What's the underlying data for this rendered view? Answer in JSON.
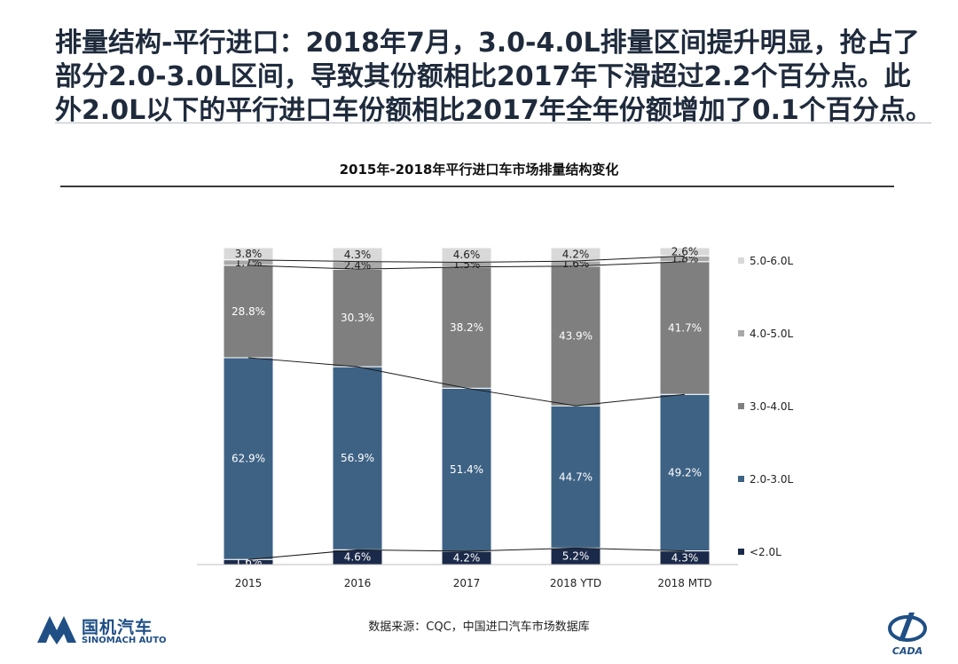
{
  "headline": "排量结构-平行进口：2018年7月，3.0-4.0L排量区间提升明显，抢占了部分2.0-3.0L区间，导致其份额相比2017年下滑超过2.2个百分点。此外2.0L以下的平行进口车份额相比2017年全年份额增加了0.1个百分点。",
  "source": "数据来源：CQC，中国进口汽车市场数据库",
  "logo": {
    "cn": "国机汽车",
    "en": "SINOMACH AUTO",
    "badge_text": "CADA"
  },
  "colors": {
    "lt2": "#1b2a4a",
    "2to3": "#3d6284",
    "3to4": "#7f7f7f",
    "4to5": "#a9a9a9",
    "5to6": "#d9d9d9"
  },
  "chart_data": {
    "type": "bar",
    "stacked": true,
    "percent": true,
    "title": "2015年-2018年平行进口车市场排量结构变化",
    "categories": [
      "2015",
      "2016",
      "2017",
      "2018 YTD",
      "2018 MTD"
    ],
    "series": [
      {
        "key": "lt2",
        "name": "<2.0L",
        "values": [
          1.6,
          4.6,
          4.2,
          5.2,
          4.3
        ],
        "labels": [
          "1.6%",
          "4.6%",
          "4.2%",
          "5.2%",
          "4.3%"
        ]
      },
      {
        "key": "2to3",
        "name": "2.0-3.0L",
        "values": [
          62.9,
          56.9,
          51.4,
          44.7,
          49.2
        ],
        "labels": [
          "62.9%",
          "56.9%",
          "51.4%",
          "44.7%",
          "49.2%"
        ]
      },
      {
        "key": "3to4",
        "name": "3.0-4.0L",
        "values": [
          28.8,
          30.3,
          38.2,
          43.9,
          41.7
        ],
        "labels": [
          "28.8%",
          "30.3%",
          "38.2%",
          "43.9%",
          "41.7%"
        ]
      },
      {
        "key": "4to5",
        "name": "4.0-5.0L",
        "values": [
          1.7,
          2.4,
          1.5,
          1.6,
          1.8
        ],
        "labels": [
          "1.7%",
          "2.4%",
          "1.5%",
          "1.6%",
          "1.8%"
        ]
      },
      {
        "key": "5to6",
        "name": "5.0-6.0L",
        "values": [
          3.8,
          4.3,
          4.6,
          4.2,
          2.6
        ],
        "labels": [
          "3.8%",
          "4.3%",
          "4.6%",
          "4.2%",
          "2.6%"
        ]
      }
    ],
    "legend_position": "right",
    "ylim": [
      0,
      100
    ]
  }
}
